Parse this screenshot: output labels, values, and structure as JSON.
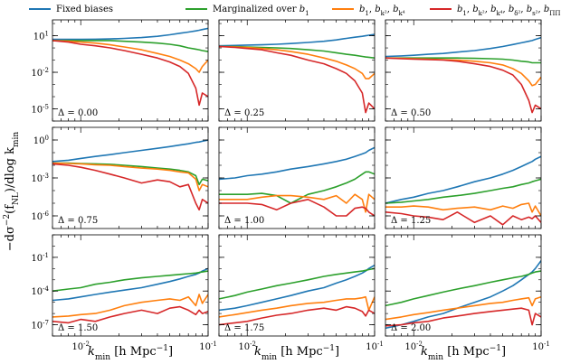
{
  "chart_data": {
    "type": "line",
    "layout": {
      "rows": 3,
      "cols": 3,
      "sharex": true,
      "sharey_per_row": true
    },
    "xlabel": "k_min [h Mpc^-1]",
    "ylabel": "-dσ^-2(f_NL)/dlog k_min",
    "xscale": "log",
    "yscale": "log",
    "xlim": [
      0.006,
      0.1
    ],
    "x_ticks": [
      0.01,
      0.1
    ],
    "x_tick_labels": [
      "10^-2",
      "10^-1"
    ],
    "grid": false,
    "legend_position": "top",
    "series": [
      {
        "name": "Fixed biases",
        "color": "#1f77b4"
      },
      {
        "name": "Marginalized over b1",
        "color": "#2ca02c"
      },
      {
        "name": "b1, b_{k^2}, b_{k^4}",
        "color": "#ff7f0e"
      },
      {
        "name": "b1, b_{k^2}, b_{k^4}, b_{δ^2}, b_{s^2}, b_{ΠΠ[2]}",
        "color": "#d62728"
      }
    ],
    "rows": [
      {
        "ylim": [
          1e-06,
          200
        ],
        "y_ticks": [
          1e-05,
          0.01,
          10
        ],
        "y_tick_labels": [
          "10^-5",
          "10^-2",
          "10^1"
        ]
      },
      {
        "ylim": [
          1e-07,
          10
        ],
        "y_ticks": [
          1e-06,
          0.001,
          1
        ],
        "y_tick_labels": [
          "10^-6",
          "10^-3",
          "10^0"
        ]
      },
      {
        "ylim": [
          1e-08,
          10
        ],
        "y_ticks": [
          1e-07,
          0.0001,
          0.1
        ],
        "y_tick_labels": [
          "10^-7",
          "10^-4",
          "10^-1"
        ]
      }
    ],
    "x": [
      0.006,
      0.008,
      0.01,
      0.013,
      0.017,
      0.022,
      0.03,
      0.04,
      0.05,
      0.06,
      0.07,
      0.08,
      0.085,
      0.09,
      0.1
    ],
    "panels": [
      {
        "delta": "Δ = 0.00",
        "series": [
          [
            5,
            5,
            5,
            5.2,
            5.5,
            6,
            7,
            9,
            12,
            16,
            20,
            25,
            28,
            32,
            40
          ],
          [
            4,
            4,
            4,
            4,
            4,
            3.5,
            3,
            2.5,
            2,
            1.5,
            1,
            0.8,
            0.7,
            0.6,
            0.5
          ],
          [
            4,
            3.5,
            3,
            2.5,
            1.8,
            1.2,
            0.7,
            0.35,
            0.2,
            0.1,
            0.05,
            0.02,
            0.01,
            0.03,
            0.1
          ],
          [
            4,
            3,
            2,
            1.5,
            1,
            0.6,
            0.3,
            0.15,
            0.07,
            0.03,
            0.008,
            0.0005,
            2e-05,
            0.0002,
            0.0001
          ]
        ]
      },
      {
        "delta": "Δ = 0.25",
        "series": [
          [
            1.5,
            1.6,
            1.7,
            1.8,
            2,
            2.3,
            2.8,
            3.5,
            4.5,
            6,
            7.5,
            9,
            10,
            11,
            13
          ],
          [
            1.3,
            1.3,
            1.2,
            1.1,
            1,
            0.9,
            0.7,
            0.55,
            0.4,
            0.3,
            0.25,
            0.2,
            0.18,
            0.17,
            0.15
          ],
          [
            1.3,
            1.2,
            1.1,
            0.9,
            0.7,
            0.5,
            0.3,
            0.15,
            0.08,
            0.04,
            0.02,
            0.008,
            0.003,
            0.003,
            0.008
          ],
          [
            1.3,
            1.1,
            0.9,
            0.7,
            0.4,
            0.25,
            0.1,
            0.05,
            0.02,
            0.008,
            0.002,
            0.0002,
            5e-06,
            3e-05,
            1e-05
          ]
        ]
      },
      {
        "delta": "Δ = 0.50",
        "series": [
          [
            0.2,
            0.22,
            0.25,
            0.3,
            0.35,
            0.45,
            0.6,
            0.9,
            1.3,
            1.9,
            2.6,
            3.5,
            4,
            5,
            7
          ],
          [
            0.15,
            0.15,
            0.15,
            0.15,
            0.15,
            0.15,
            0.14,
            0.13,
            0.12,
            0.1,
            0.08,
            0.07,
            0.06,
            0.06,
            0.06
          ],
          [
            0.15,
            0.14,
            0.13,
            0.12,
            0.11,
            0.1,
            0.08,
            0.06,
            0.04,
            0.02,
            0.008,
            0.002,
            0.0008,
            0.001,
            0.004
          ],
          [
            0.15,
            0.13,
            0.12,
            0.11,
            0.1,
            0.08,
            0.05,
            0.03,
            0.015,
            0.006,
            0.001,
            5e-05,
            5e-06,
            2e-05,
            1e-05
          ]
        ]
      },
      {
        "delta": "Δ = 0.75",
        "series": [
          [
            0.02,
            0.025,
            0.035,
            0.05,
            0.07,
            0.1,
            0.15,
            0.22,
            0.3,
            0.4,
            0.5,
            0.65,
            0.7,
            0.8,
            1
          ],
          [
            0.015,
            0.015,
            0.014,
            0.013,
            0.012,
            0.01,
            0.008,
            0.006,
            0.005,
            0.004,
            0.003,
            0.0015,
            0.0003,
            0.0008,
            0.0006
          ],
          [
            0.015,
            0.014,
            0.013,
            0.011,
            0.01,
            0.008,
            0.006,
            0.005,
            0.004,
            0.003,
            0.0025,
            0.0008,
            0.0001,
            0.0003,
            0.0002
          ],
          [
            0.013,
            0.01,
            0.007,
            0.004,
            0.002,
            0.001,
            0.0004,
            0.0007,
            0.0005,
            0.0002,
            0.0003,
            1e-05,
            3e-06,
            2e-05,
            1e-05
          ]
        ]
      },
      {
        "delta": "Δ = 1.00",
        "series": [
          [
            0.0008,
            0.001,
            0.0015,
            0.002,
            0.003,
            0.005,
            0.008,
            0.013,
            0.02,
            0.03,
            0.05,
            0.08,
            0.1,
            0.15,
            0.25
          ],
          [
            5e-05,
            5e-05,
            5e-05,
            6e-05,
            4e-05,
            1e-05,
            5e-05,
            0.0001,
            0.0002,
            0.0004,
            0.0008,
            0.002,
            0.003,
            0.003,
            0.002
          ],
          [
            2e-05,
            2e-05,
            2e-05,
            3e-05,
            4e-05,
            4e-05,
            3e-05,
            2e-05,
            4e-05,
            1e-05,
            5e-05,
            2e-05,
            2e-06,
            5e-05,
            2e-05
          ],
          [
            1e-05,
            1e-05,
            1e-05,
            8e-06,
            3e-06,
            1e-05,
            2e-05,
            5e-06,
            1e-06,
            1e-06,
            4e-06,
            5e-06,
            4e-06,
            2e-06,
            1e-06
          ]
        ]
      },
      {
        "delta": "Δ = 1.25",
        "series": [
          [
            1e-05,
            2e-05,
            3e-05,
            6e-05,
            0.0001,
            0.0002,
            0.0005,
            0.001,
            0.002,
            0.004,
            0.008,
            0.015,
            0.02,
            0.03,
            0.05
          ],
          [
            1e-05,
            1.2e-05,
            1.5e-05,
            2e-05,
            3e-05,
            4e-05,
            6e-05,
            0.0001,
            0.00015,
            0.0002,
            0.0003,
            0.0004,
            0.0005,
            0.0006,
            0.0008
          ],
          [
            5e-06,
            5e-06,
            6e-06,
            5e-06,
            3e-06,
            4e-06,
            5e-06,
            3e-06,
            6e-06,
            4e-06,
            8e-06,
            1e-05,
            2e-06,
            6e-06,
            1e-06
          ],
          [
            2e-06,
            1.5e-06,
            1e-06,
            8e-07,
            5e-07,
            2e-06,
            3e-07,
            1e-06,
            2e-07,
            1e-06,
            5e-07,
            8e-07,
            6e-07,
            1e-06,
            3e-07
          ]
        ]
      },
      {
        "delta": "Δ = 1.50",
        "series": [
          [
            1.5e-05,
            2e-05,
            3e-05,
            5e-05,
            8e-05,
            0.00012,
            0.0002,
            0.0004,
            0.0007,
            0.0012,
            0.002,
            0.003,
            0.004,
            0.006,
            0.01
          ],
          [
            0.0001,
            0.00015,
            0.0002,
            0.0004,
            0.0006,
            0.001,
            0.0015,
            0.002,
            0.0025,
            0.003,
            0.0035,
            0.004,
            0.0045,
            0.005,
            0.006
          ],
          [
            5e-07,
            6e-07,
            8e-07,
            1e-06,
            2e-06,
            5e-06,
            1e-05,
            1.5e-05,
            2e-05,
            1.5e-05,
            3e-05,
            5e-06,
            5e-05,
            8e-06,
            5e-05
          ],
          [
            2e-07,
            1.5e-07,
            3e-07,
            2e-07,
            5e-07,
            1e-06,
            2e-06,
            1e-06,
            3e-06,
            4e-06,
            2e-06,
            8e-07,
            2e-06,
            1e-06,
            1.5e-06
          ]
        ]
      },
      {
        "delta": "Δ = 1.75",
        "series": [
          [
            2e-06,
            3e-06,
            5e-06,
            1e-05,
            2e-05,
            4e-05,
            0.0001,
            0.0002,
            0.0005,
            0.001,
            0.002,
            0.004,
            0.006,
            0.01,
            0.02
          ],
          [
            2e-05,
            4e-05,
            8e-05,
            0.00015,
            0.0003,
            0.0005,
            0.001,
            0.002,
            0.003,
            0.004,
            0.005,
            0.006,
            0.007,
            0.008,
            0.01
          ],
          [
            5e-07,
            8e-07,
            1.2e-06,
            2e-06,
            3e-06,
            5e-06,
            8e-06,
            1e-05,
            1.5e-05,
            2e-05,
            2e-05,
            2.5e-05,
            3e-05,
            2e-06,
            3e-05
          ],
          [
            1e-07,
            1.5e-07,
            2e-07,
            4e-07,
            7e-07,
            1e-06,
            2e-06,
            3e-06,
            2e-06,
            4e-06,
            3e-06,
            1.5e-06,
            6e-07,
            2e-06,
            1e-06
          ]
        ]
      },
      {
        "delta": "Δ = 2.00",
        "series": [
          [
            5e-08,
            1e-07,
            2e-07,
            5e-07,
            1e-06,
            3e-06,
            1e-05,
            3e-05,
            0.0001,
            0.0003,
            0.001,
            0.003,
            0.005,
            0.01,
            0.05
          ],
          [
            5e-06,
            1e-05,
            2e-05,
            4e-05,
            8e-05,
            0.00015,
            0.0003,
            0.0006,
            0.001,
            0.0015,
            0.002,
            0.003,
            0.004,
            0.005,
            0.006
          ],
          [
            3e-07,
            5e-07,
            8e-07,
            1.2e-06,
            2e-06,
            3e-06,
            5e-06,
            8e-06,
            1e-05,
            1.5e-05,
            2e-05,
            2.5e-05,
            5e-06,
            2e-05,
            3e-05
          ],
          [
            8e-08,
            1e-07,
            1.5e-07,
            2e-07,
            4e-07,
            6e-07,
            1e-06,
            1.5e-06,
            2e-06,
            2.5e-06,
            3e-06,
            2e-06,
            1e-07,
            1e-06,
            5e-07
          ]
        ]
      }
    ]
  }
}
